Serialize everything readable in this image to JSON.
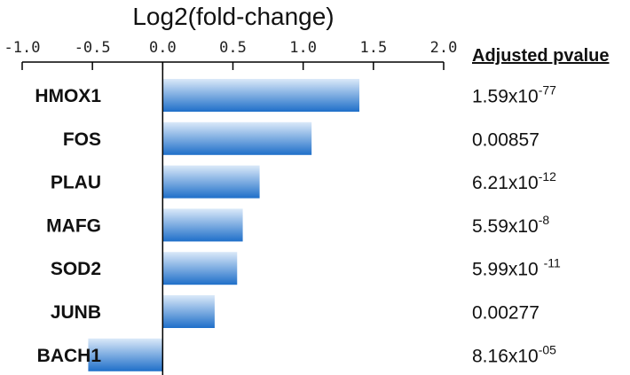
{
  "chart_data": {
    "type": "bar",
    "orientation": "horizontal",
    "title": "Log2(fold-change)",
    "xlim": [
      -1.0,
      2.0
    ],
    "tick_labels": [
      "-1.0",
      "-0.5",
      "0.0",
      "0.5",
      "1.0",
      "1.5",
      "2.0"
    ],
    "tick_values": [
      -1.0,
      -0.5,
      0.0,
      0.5,
      1.0,
      1.5,
      2.0
    ],
    "categories": [
      "HMOX1",
      "FOS",
      "PLAU",
      "MAFG",
      "SOD2",
      "JUNB",
      "BACH1"
    ],
    "values": [
      1.4,
      1.06,
      0.69,
      0.57,
      0.53,
      0.37,
      -0.53
    ],
    "pvalue_header": "Adjusted pvalue",
    "pvalues": [
      {
        "base": "1.59x10",
        "exp": "-77"
      },
      {
        "base": "0.00857",
        "exp": ""
      },
      {
        "base": "6.21x10",
        "exp": "-12"
      },
      {
        "base": "5.59x10",
        "exp": "-8"
      },
      {
        "base": "5.99x10 ",
        "exp": "-11"
      },
      {
        "base": "0.00277",
        "exp": ""
      },
      {
        "base": "8.16x10",
        "exp": "-05"
      }
    ],
    "colors": {
      "bar_dark": "#1f6fc9",
      "bar_light": "#dbe9f9",
      "axis": "#000000"
    }
  }
}
